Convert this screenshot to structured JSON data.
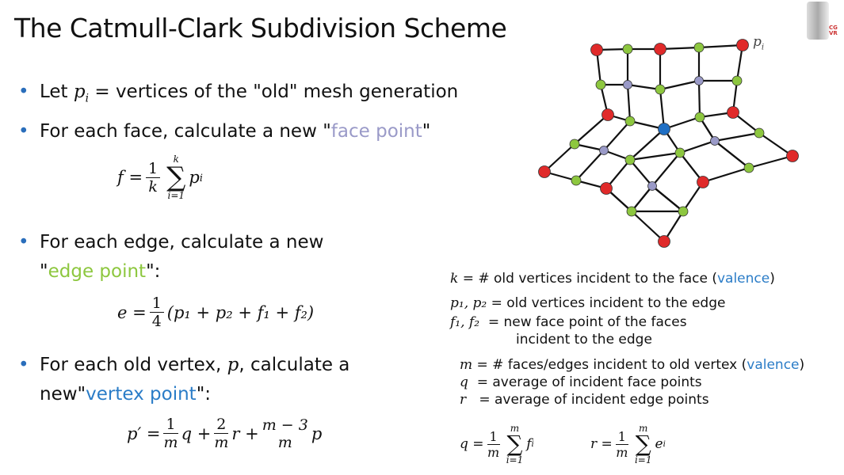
{
  "title": "The Catmull-Clark Subdivision Scheme",
  "bullets": {
    "b1_pre": "Let ",
    "b1_var": "p",
    "b1_sub": "i",
    "b1_post": " = vertices of the \"old\" mesh generation",
    "b2_pre": "For each face, calculate a new \"",
    "b2_hl": "face point",
    "b2_post": "\"",
    "b3_line1": "For each edge, calculate a new",
    "b3_pre": "\"",
    "b3_hl": "edge point",
    "b3_post": "\":",
    "b4_pre": "For each old vertex, ",
    "b4_var": "p",
    "b4_post": ", calculate a",
    "b4_l2_pre": "new\"",
    "b4_hl": "vertex point",
    "b4_l2_post": "\":"
  },
  "formulas": {
    "face": {
      "lhs": "f =",
      "num": "1",
      "den": "k",
      "top": "k",
      "bottom": "i=1",
      "term": "p",
      "sub": "i"
    },
    "edge": {
      "lhs": "e =",
      "num": "1",
      "den": "4",
      "rest": "(p₁ + p₂ + f₁ + f₂)"
    },
    "vertex": {
      "lhs": "p′ =",
      "n1": "1",
      "d1": "m",
      "t1": "q +",
      "n2": "2",
      "d2": "m",
      "t2": "r +",
      "n3": "m − 3",
      "d3": "m",
      "t3": "p"
    },
    "q": {
      "lhs": "q =",
      "num": "1",
      "den": "m",
      "top": "m",
      "bottom": "i=1",
      "term": "f",
      "sub": "i"
    },
    "r": {
      "lhs": "r =",
      "num": "1",
      "den": "m",
      "top": "m",
      "bottom": "i=1",
      "term": "e",
      "sub": "i"
    }
  },
  "definitions": {
    "k_var": "k",
    "k_text": " = # old vertices incident to the face (",
    "k_val": "valence",
    "k_end": ")",
    "p_var": "p₁, p₂",
    "p_text": " = old vertices incident to the edge",
    "f_var": "f₁, f₂",
    "f_text": "  = new face point of the faces",
    "f_text2": "incident to the edge",
    "m_var": "m",
    "m_text": " = # faces/edges incident to old vertex (",
    "m_val": "valence",
    "m_end": ")",
    "q_var": "q",
    "q_text": "  = average of incident face points",
    "r_var": "r",
    "r_text": "   = average of incident edge points"
  },
  "figure": {
    "label_var": "p",
    "label_sub": "i",
    "colors": {
      "old": "#e02a2a",
      "edge": "#8dc73f",
      "face": "#9a9ac8",
      "selected": "#1f6fc4"
    }
  },
  "logo": {
    "text": "CG VR"
  }
}
